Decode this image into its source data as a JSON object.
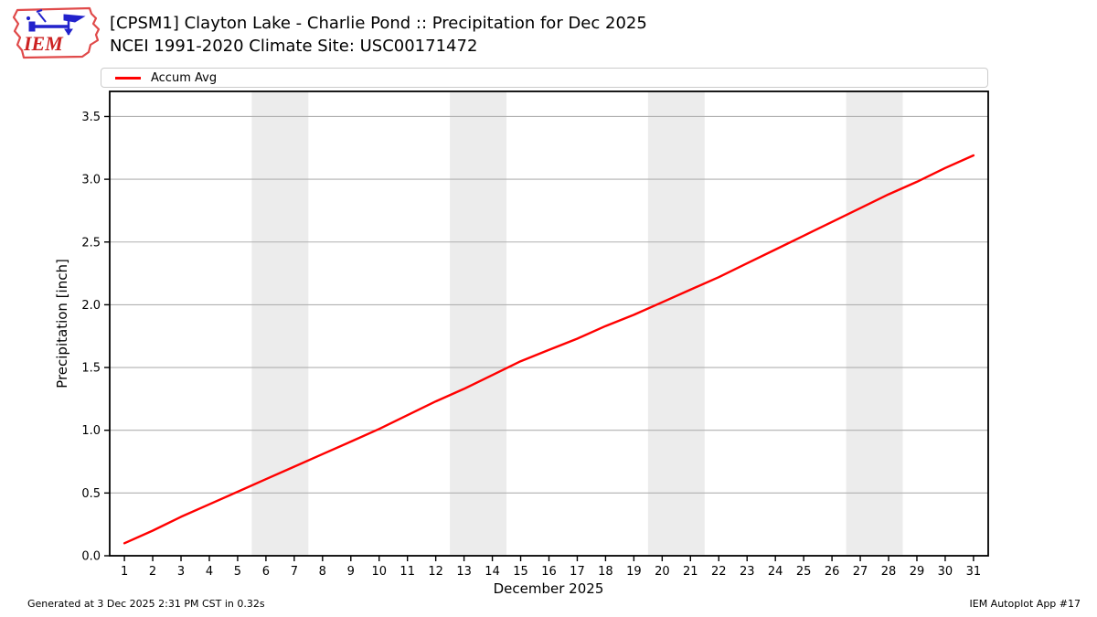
{
  "header": {
    "title_line1": "[CPSM1] Clayton Lake - Charlie Pond :: Precipitation for Dec 2025",
    "title_line2": "NCEI 1991-2020 Climate Site: USC00171472"
  },
  "logo": {
    "text": "IEM"
  },
  "legend": {
    "items": [
      {
        "label": "Accum Avg",
        "color": "#ff0000"
      }
    ]
  },
  "footer": {
    "left": "Generated at 3 Dec 2025 2:31 PM CST in 0.32s",
    "right": "IEM Autoplot App #17"
  },
  "chart_data": {
    "type": "line",
    "title": "[CPSM1] Clayton Lake - Charlie Pond :: Precipitation for Dec 2025",
    "subtitle": "NCEI 1991-2020 Climate Site: USC00171472",
    "xlabel": "December 2025",
    "ylabel": "Precipitation [inch]",
    "xlim": [
      0.48,
      31.52
    ],
    "ylim": [
      0,
      3.7
    ],
    "x": [
      1,
      2,
      3,
      4,
      5,
      6,
      7,
      8,
      9,
      10,
      11,
      12,
      13,
      14,
      15,
      16,
      17,
      18,
      19,
      20,
      21,
      22,
      23,
      24,
      25,
      26,
      27,
      28,
      29,
      30,
      31
    ],
    "xticks": [
      1,
      2,
      3,
      4,
      5,
      6,
      7,
      8,
      9,
      10,
      11,
      12,
      13,
      14,
      15,
      16,
      17,
      18,
      19,
      20,
      21,
      22,
      23,
      24,
      25,
      26,
      27,
      28,
      29,
      30,
      31
    ],
    "yticks": [
      0.0,
      0.5,
      1.0,
      1.5,
      2.0,
      2.5,
      3.0,
      3.5
    ],
    "grid": true,
    "legend_position": "top",
    "weekend_bands": [
      [
        5.5,
        7.5
      ],
      [
        12.5,
        14.5
      ],
      [
        19.5,
        21.5
      ],
      [
        26.5,
        28.5
      ]
    ],
    "series": [
      {
        "name": "Accum Avg",
        "color": "#ff0000",
        "values": [
          0.1,
          0.2,
          0.31,
          0.41,
          0.51,
          0.61,
          0.71,
          0.81,
          0.91,
          1.01,
          1.12,
          1.23,
          1.33,
          1.44,
          1.55,
          1.64,
          1.73,
          1.83,
          1.92,
          2.02,
          2.12,
          2.22,
          2.33,
          2.44,
          2.55,
          2.66,
          2.77,
          2.88,
          2.98,
          3.09,
          3.19
        ]
      }
    ],
    "colors": {
      "band": "#ececec",
      "grid": "#b0b0b0",
      "axis": "#000000",
      "background": "#ffffff"
    }
  }
}
